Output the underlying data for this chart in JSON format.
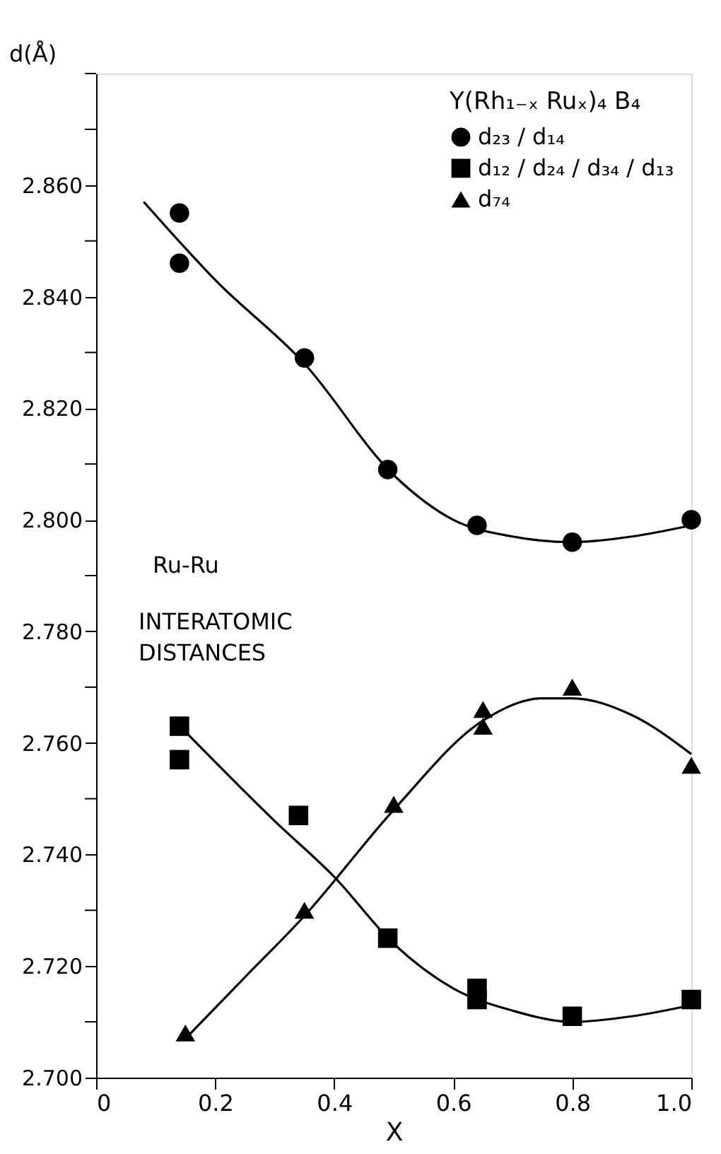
{
  "chart_data": {
    "type": "scatter",
    "xlabel": "X",
    "ylabel": "d(Å)",
    "legend_title": "Y(Rh₁₋ₓ Ruₓ)₄ B₄",
    "legend": "top right",
    "grid": false,
    "annotations": [
      "Ru-Ru",
      "INTERATOMIC DISTANCES"
    ],
    "xlim": [
      0,
      1.0
    ],
    "xticks": [
      0,
      0.2,
      0.4,
      0.6,
      0.8,
      {
        "value": 1.0,
        "label": "1.0"
      }
    ],
    "ylim": [
      2.7,
      2.88
    ],
    "yticks": [
      {
        "value": 2.7,
        "label": "2.700"
      },
      {
        "value": 2.71,
        "label": null
      },
      {
        "value": 2.72,
        "label": "2.720"
      },
      {
        "value": 2.73,
        "label": null
      },
      {
        "value": 2.74,
        "label": "2.740"
      },
      {
        "value": 2.75,
        "label": null
      },
      {
        "value": 2.76,
        "label": "2.760"
      },
      {
        "value": 2.77,
        "label": null
      },
      {
        "value": 2.78,
        "label": "2.780"
      },
      {
        "value": 2.79,
        "label": null
      },
      {
        "value": 2.8,
        "label": "2.800"
      },
      {
        "value": 2.81,
        "label": null
      },
      {
        "value": 2.82,
        "label": "2.820"
      },
      {
        "value": 2.83,
        "label": null
      },
      {
        "value": 2.84,
        "label": "2.840"
      },
      {
        "value": 2.85,
        "label": null
      },
      {
        "value": 2.86,
        "label": "2.860"
      },
      {
        "value": 2.87,
        "label": null
      },
      {
        "value": 2.88,
        "label": null
      }
    ],
    "series": [
      {
        "name": "d₂₃ / d₁₄",
        "marker": "circle",
        "color": "#000000",
        "x": [
          0.14,
          0.14,
          0.35,
          0.49,
          0.64,
          0.8,
          1.0
        ],
        "values": [
          2.855,
          2.846,
          2.829,
          2.809,
          2.799,
          2.796,
          2.8
        ]
      },
      {
        "name": "d₁₂ / d₂₄ / d₃₄ / d₁₃",
        "marker": "square",
        "color": "#000000",
        "x": [
          0.14,
          0.14,
          0.34,
          0.49,
          0.64,
          0.64,
          0.8,
          1.0
        ],
        "values": [
          2.763,
          2.757,
          2.747,
          2.725,
          2.716,
          2.714,
          2.711,
          2.714
        ]
      },
      {
        "name": "d₇₄",
        "marker": "triangle",
        "color": "#000000",
        "x": [
          0.15,
          0.35,
          0.5,
          0.65,
          0.65,
          0.8,
          1.0
        ],
        "values": [
          2.708,
          2.73,
          2.749,
          2.766,
          2.763,
          2.77,
          2.756
        ]
      },
      {
        "type": "line",
        "color": "#000000",
        "line_style": "solid",
        "x": [
          0.08,
          0.2,
          0.35,
          0.5,
          0.6,
          0.7,
          0.8,
          0.9,
          1.0
        ],
        "values": [
          2.857,
          2.843,
          2.828,
          2.808,
          2.8,
          2.797,
          2.796,
          2.797,
          2.799
        ]
      },
      {
        "type": "line",
        "color": "#000000",
        "line_style": "solid",
        "x": [
          0.15,
          0.3,
          0.4,
          0.5,
          0.6,
          0.7,
          0.8,
          0.9,
          1.0
        ],
        "values": [
          2.762,
          2.746,
          2.736,
          2.724,
          2.716,
          2.712,
          2.71,
          2.711,
          2.713
        ]
      },
      {
        "type": "line",
        "color": "#000000",
        "line_style": "solid",
        "x": [
          0.15,
          0.25,
          0.35,
          0.5,
          0.65,
          0.75,
          0.8,
          0.9,
          1.0
        ],
        "values": [
          2.707,
          2.718,
          2.729,
          2.748,
          2.764,
          2.768,
          2.768,
          2.765,
          2.758
        ]
      }
    ]
  }
}
